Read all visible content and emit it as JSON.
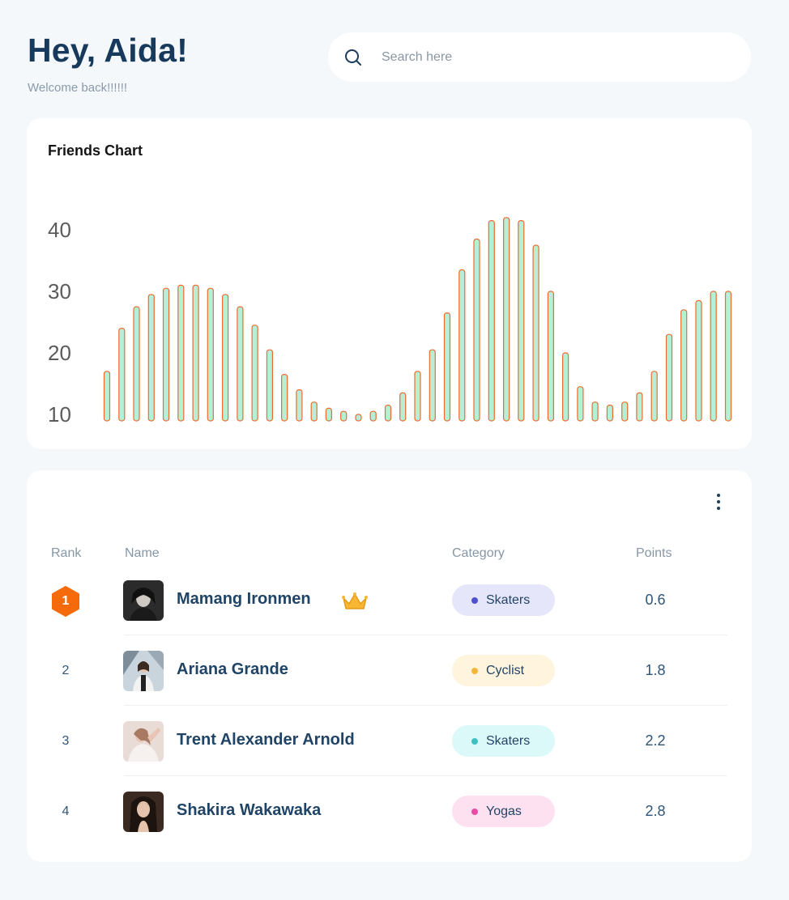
{
  "header": {
    "greeting": "Hey, Aida!",
    "subtitle": "Welcome back!!!!!!"
  },
  "search": {
    "placeholder": "Search here",
    "icon": "search-icon"
  },
  "chart_data": {
    "type": "bar",
    "title": "Friends Chart",
    "xlabel": "",
    "ylabel": "",
    "y_ticks": [
      "40",
      "30",
      "20",
      "10"
    ],
    "ylim": [
      8,
      42
    ],
    "grid": false,
    "bar_fill": "#b5f0d6",
    "bar_stroke": "#f06a2d",
    "values": [
      17,
      24,
      27.5,
      29.5,
      30.5,
      31,
      31,
      30.5,
      29.5,
      27.5,
      24.5,
      20.5,
      16.5,
      14,
      12,
      11,
      10.5,
      10,
      10.5,
      11.5,
      13.5,
      17,
      20.5,
      26.5,
      33.5,
      38.5,
      41.5,
      42,
      41.5,
      37.5,
      30,
      20,
      14.5,
      12,
      11.5,
      12,
      13.5,
      17,
      23,
      27,
      28.5,
      30,
      30
    ]
  },
  "table": {
    "more_icon": "more-vertical-icon",
    "headers": {
      "rank": "Rank",
      "name": "Name",
      "category": "Category",
      "points": "Points"
    },
    "rows": [
      {
        "rank": "1",
        "name": "Mamang Ironmen",
        "category": "Skaters",
        "points": "0.6",
        "chip_bg": "#e6e6fb",
        "dot": "#4f4fcf",
        "top": true
      },
      {
        "rank": "2",
        "name": "Ariana Grande",
        "category": "Cyclist",
        "points": "1.8",
        "chip_bg": "#fff4dd",
        "dot": "#f5b53a"
      },
      {
        "rank": "3",
        "name": "Trent Alexander Arnold",
        "category": "Skaters",
        "points": "2.2",
        "chip_bg": "#dcf9f9",
        "dot": "#3fc0c0"
      },
      {
        "rank": "4",
        "name": "Shakira Wakawaka",
        "category": "Yogas",
        "points": "2.8",
        "chip_bg": "#fde1f0",
        "dot": "#e84aa5"
      }
    ],
    "rank_badge_color": "#f56a0a",
    "crown_icon": "crown-icon"
  }
}
